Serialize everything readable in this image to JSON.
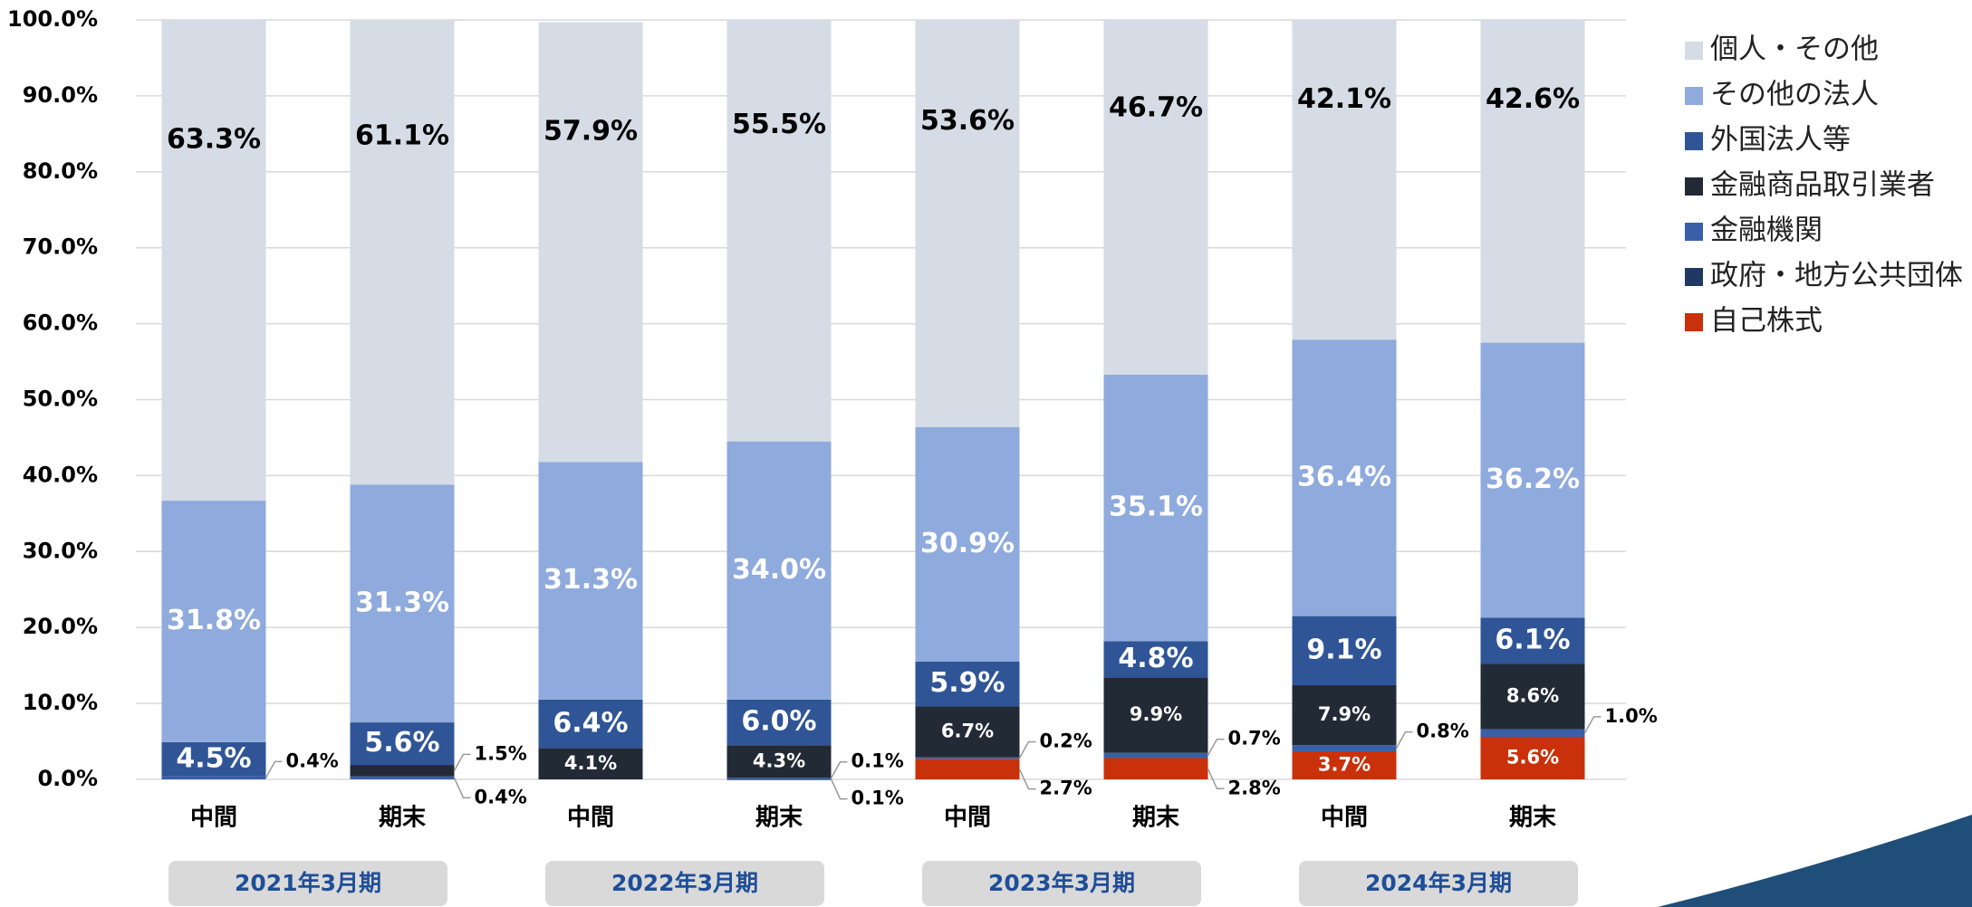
{
  "chart_data": {
    "type": "stacked_bar",
    "categories": [
      "中間",
      "期末",
      "中間",
      "期末",
      "中間",
      "期末",
      "中間",
      "期末"
    ],
    "groups": [
      "2021年3月期",
      "2022年3月期",
      "2023年3月期",
      "2024年3月期"
    ],
    "series": [
      {
        "name": "自己株式",
        "color": "#c9310a",
        "values": [
          null,
          null,
          null,
          null,
          2.7,
          2.8,
          3.7,
          5.6
        ],
        "value_labels": [
          null,
          null,
          null,
          null,
          "2.7%",
          "2.8%",
          "3.7%",
          "5.6%"
        ]
      },
      {
        "name": "政府・地方公共団体",
        "color": "#203864",
        "values": [
          null,
          null,
          null,
          0.1,
          null,
          null,
          null,
          null
        ],
        "value_labels": [
          null,
          null,
          null,
          "0.1%",
          null,
          null,
          null,
          null
        ]
      },
      {
        "name": "金融機関",
        "color": "#3a5fa8",
        "values": [
          0.4,
          0.4,
          null,
          0.1,
          0.2,
          0.7,
          0.8,
          1.0
        ],
        "value_labels": [
          "0.4%",
          "0.4%",
          null,
          "0.1%",
          "0.2%",
          "0.7%",
          "0.8%",
          "1.0%"
        ]
      },
      {
        "name": "金融商品取引業者",
        "color": "#222a35",
        "values": [
          null,
          1.5,
          4.1,
          4.3,
          6.7,
          9.9,
          7.9,
          8.6
        ],
        "value_labels": [
          null,
          "1.5%",
          "4.1%",
          "4.3%",
          "6.7%",
          "9.9%",
          "7.9%",
          "8.6%"
        ]
      },
      {
        "name": "外国法人等",
        "color": "#2f5597",
        "values": [
          4.5,
          5.6,
          6.4,
          6.0,
          5.9,
          4.8,
          9.1,
          6.1
        ],
        "value_labels": [
          "4.5%",
          "5.6%",
          "6.4%",
          "6.0%",
          "5.9%",
          "4.8%",
          "9.1%",
          "6.1%"
        ]
      },
      {
        "name": "その他の法人",
        "color": "#8faadc",
        "values": [
          31.8,
          31.3,
          31.3,
          34.0,
          30.9,
          35.1,
          36.4,
          36.2
        ],
        "value_labels": [
          "31.8%",
          "31.3%",
          "31.3%",
          "34.0%",
          "30.9%",
          "35.1%",
          "36.4%",
          "36.2%"
        ]
      },
      {
        "name": "個人・その他",
        "color": "#d6dce5",
        "values": [
          63.3,
          61.1,
          57.9,
          55.5,
          53.6,
          46.7,
          42.1,
          42.6
        ],
        "value_labels": [
          "63.3%",
          "61.1%",
          "57.9%",
          "55.5%",
          "53.6%",
          "46.7%",
          "42.1%",
          "42.6%"
        ]
      }
    ],
    "ylim": [
      0,
      100
    ],
    "yticks": [
      {
        "value": 0,
        "label": "0.0%"
      },
      {
        "value": 10,
        "label": "10.0%"
      },
      {
        "value": 20,
        "label": "20.0%"
      },
      {
        "value": 30,
        "label": "30.0%"
      },
      {
        "value": 40,
        "label": "40.0%"
      },
      {
        "value": 50,
        "label": "50.0%"
      },
      {
        "value": 60,
        "label": "60.0%"
      },
      {
        "value": 70,
        "label": "70.0%"
      },
      {
        "value": 80,
        "label": "80.0%"
      },
      {
        "value": 90,
        "label": "90.0%"
      },
      {
        "value": 100,
        "label": "100.0%"
      }
    ],
    "grid": true,
    "legend": "right"
  }
}
